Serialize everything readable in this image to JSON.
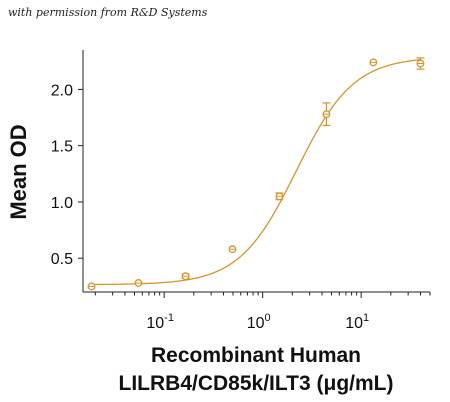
{
  "watermark": "with permission from R&D Systems",
  "chart_data": {
    "type": "scatter",
    "xscale": "log",
    "xlim": [
      0.015,
      50
    ],
    "ylim": [
      0.2,
      2.35
    ],
    "ylabel": "Mean OD",
    "xlabel_line1": "Recombinant Human",
    "xlabel_line2": "LILRB4/CD85k/ILT3 (μg/mL)",
    "x_ticks": [
      {
        "value": 0.1,
        "base": "10",
        "exp": "-1"
      },
      {
        "value": 1,
        "base": "10",
        "exp": "0"
      },
      {
        "value": 10,
        "base": "10",
        "exp": "1"
      }
    ],
    "y_ticks": [
      {
        "value": 0.5,
        "label": "0.5"
      },
      {
        "value": 1.0,
        "label": "1.0"
      },
      {
        "value": 1.5,
        "label": "1.5"
      },
      {
        "value": 2.0,
        "label": "2.0"
      }
    ],
    "color": "#d9952b",
    "points": [
      {
        "x": 0.0183,
        "y": 0.25,
        "err": 0.0
      },
      {
        "x": 0.0549,
        "y": 0.28,
        "err": 0.0
      },
      {
        "x": 0.165,
        "y": 0.34,
        "err": 0.02
      },
      {
        "x": 0.494,
        "y": 0.58,
        "err": 0.0
      },
      {
        "x": 1.48,
        "y": 1.05,
        "err": 0.03
      },
      {
        "x": 4.44,
        "y": 1.78,
        "err": 0.1
      },
      {
        "x": 13.3,
        "y": 2.24,
        "err": 0.0
      },
      {
        "x": 40.0,
        "y": 2.23,
        "err": 0.05
      }
    ],
    "fit": {
      "bottom": 0.265,
      "top": 2.29,
      "ec50": 2.2,
      "hill": 1.5
    }
  }
}
